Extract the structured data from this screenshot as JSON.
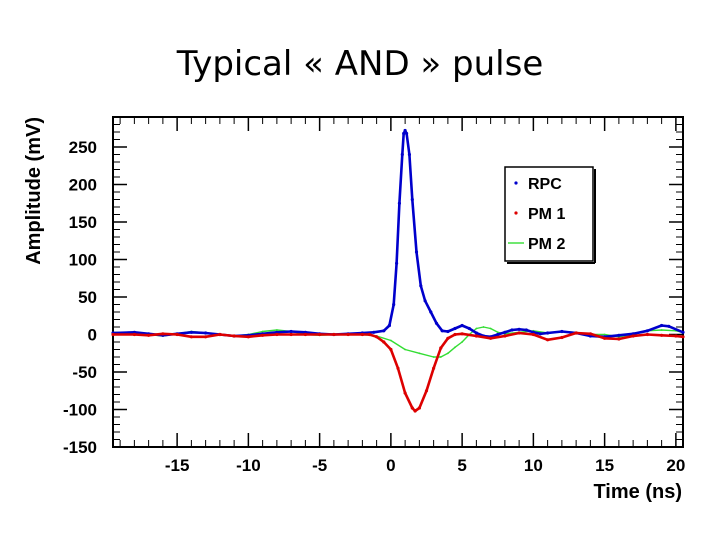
{
  "slide": {
    "title": "Typical « AND » pulse"
  },
  "chart_data": {
    "type": "line",
    "xlabel": "Time (ns)",
    "ylabel": "Amplitude (mV)",
    "xlim": [
      -19.5,
      20.5
    ],
    "ylim": [
      -150,
      290
    ],
    "xticks": [
      -15,
      -10,
      -5,
      0,
      5,
      10,
      15,
      20
    ],
    "yticks": [
      -150,
      -100,
      -50,
      0,
      50,
      100,
      150,
      200,
      250
    ],
    "legend_position": "top-right",
    "series": [
      {
        "name": "RPC",
        "color": "#0000cc",
        "marker": "dots",
        "points": [
          [
            -19.5,
            2
          ],
          [
            -18,
            3
          ],
          [
            -17,
            1
          ],
          [
            -16,
            -1
          ],
          [
            -15,
            1
          ],
          [
            -14,
            3
          ],
          [
            -13,
            2
          ],
          [
            -12,
            0
          ],
          [
            -11,
            -2
          ],
          [
            -10,
            -1
          ],
          [
            -9,
            1
          ],
          [
            -8,
            3
          ],
          [
            -7,
            4
          ],
          [
            -6,
            3
          ],
          [
            -5,
            1
          ],
          [
            -4,
            0
          ],
          [
            -3,
            1
          ],
          [
            -2,
            2
          ],
          [
            -1.2,
            3
          ],
          [
            -0.5,
            5
          ],
          [
            -0.1,
            12
          ],
          [
            0.2,
            40
          ],
          [
            0.4,
            95
          ],
          [
            0.6,
            175
          ],
          [
            0.8,
            240
          ],
          [
            0.9,
            268
          ],
          [
            1.0,
            272
          ],
          [
            1.1,
            268
          ],
          [
            1.3,
            240
          ],
          [
            1.5,
            180
          ],
          [
            1.8,
            110
          ],
          [
            2.1,
            65
          ],
          [
            2.4,
            45
          ],
          [
            2.8,
            30
          ],
          [
            3.2,
            15
          ],
          [
            3.6,
            5
          ],
          [
            4.0,
            4
          ],
          [
            4.5,
            8
          ],
          [
            5.0,
            12
          ],
          [
            5.5,
            8
          ],
          [
            6.0,
            2
          ],
          [
            6.5,
            -2
          ],
          [
            7.0,
            -3
          ],
          [
            7.5,
            0
          ],
          [
            8.0,
            3
          ],
          [
            8.5,
            6
          ],
          [
            9.0,
            7
          ],
          [
            9.5,
            6
          ],
          [
            10,
            3
          ],
          [
            10.5,
            1
          ],
          [
            11,
            2
          ],
          [
            12,
            4
          ],
          [
            13,
            2
          ],
          [
            14,
            -2
          ],
          [
            15,
            -3
          ],
          [
            16,
            -1
          ],
          [
            17,
            1
          ],
          [
            18,
            5
          ],
          [
            19,
            12
          ],
          [
            19.5,
            11
          ],
          [
            20.5,
            3
          ]
        ]
      },
      {
        "name": "PM 1",
        "color": "#dd0000",
        "marker": "dots",
        "points": [
          [
            -19.5,
            0
          ],
          [
            -18,
            0
          ],
          [
            -17,
            -1
          ],
          [
            -16,
            1
          ],
          [
            -15,
            0
          ],
          [
            -14,
            -3
          ],
          [
            -13,
            -3
          ],
          [
            -12,
            0
          ],
          [
            -11,
            -2
          ],
          [
            -10,
            -3
          ],
          [
            -9,
            -1
          ],
          [
            -8,
            0
          ],
          [
            -7,
            0
          ],
          [
            -6,
            0
          ],
          [
            -5,
            0
          ],
          [
            -4,
            0
          ],
          [
            -3,
            0
          ],
          [
            -2,
            0
          ],
          [
            -1.5,
            0
          ],
          [
            -1,
            -3
          ],
          [
            -0.5,
            -10
          ],
          [
            0,
            -20
          ],
          [
            0.5,
            -45
          ],
          [
            1.0,
            -78
          ],
          [
            1.5,
            -98
          ],
          [
            1.7,
            -102
          ],
          [
            2.0,
            -98
          ],
          [
            2.5,
            -75
          ],
          [
            3.0,
            -45
          ],
          [
            3.5,
            -18
          ],
          [
            4.0,
            -5
          ],
          [
            4.5,
            0
          ],
          [
            5,
            1
          ],
          [
            6,
            -2
          ],
          [
            7,
            -5
          ],
          [
            8,
            -2
          ],
          [
            9,
            2
          ],
          [
            10,
            0
          ],
          [
            11,
            -7
          ],
          [
            12,
            -4
          ],
          [
            13,
            2
          ],
          [
            14,
            1
          ],
          [
            15,
            -5
          ],
          [
            16,
            -6
          ],
          [
            17,
            -2
          ],
          [
            18,
            0
          ],
          [
            19,
            -1
          ],
          [
            20,
            -2
          ],
          [
            20.5,
            -3
          ]
        ]
      },
      {
        "name": "PM 2",
        "color": "#33dd33",
        "marker": "line",
        "points": [
          [
            -19.5,
            3
          ],
          [
            -18,
            3
          ],
          [
            -17,
            0
          ],
          [
            -16,
            -2
          ],
          [
            -15,
            1
          ],
          [
            -14,
            4
          ],
          [
            -13,
            2
          ],
          [
            -12,
            0
          ],
          [
            -11,
            -2
          ],
          [
            -10,
            0
          ],
          [
            -9,
            4
          ],
          [
            -8,
            6
          ],
          [
            -7,
            4
          ],
          [
            -6,
            0
          ],
          [
            -5,
            -1
          ],
          [
            -4,
            0
          ],
          [
            -3,
            0
          ],
          [
            -2,
            0
          ],
          [
            -1,
            -2
          ],
          [
            0,
            -8
          ],
          [
            1,
            -20
          ],
          [
            2,
            -25
          ],
          [
            3,
            -30
          ],
          [
            3.5,
            -30
          ],
          [
            4,
            -25
          ],
          [
            4.5,
            -17
          ],
          [
            5,
            -10
          ],
          [
            5.5,
            0
          ],
          [
            6,
            8
          ],
          [
            6.5,
            10
          ],
          [
            7,
            8
          ],
          [
            7.5,
            3
          ],
          [
            8,
            1
          ],
          [
            9,
            3
          ],
          [
            10,
            5
          ],
          [
            11,
            2
          ],
          [
            12,
            4
          ],
          [
            13,
            3
          ],
          [
            14,
            0
          ],
          [
            15,
            0
          ],
          [
            16,
            -3
          ],
          [
            17,
            0
          ],
          [
            18,
            5
          ],
          [
            19,
            6
          ],
          [
            20,
            5
          ],
          [
            20.5,
            3
          ]
        ]
      }
    ]
  }
}
